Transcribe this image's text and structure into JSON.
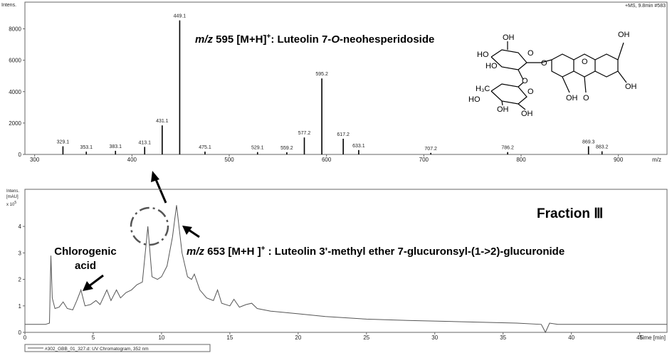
{
  "chart_data": [
    {
      "type": "stick",
      "ylabel": "Intens.",
      "info": "+MS, 9.8min #583",
      "xlabel": "m/z",
      "x": [
        329.1,
        353.1,
        383.1,
        413.1,
        431.1,
        449.1,
        475.1,
        529.1,
        559.2,
        577.2,
        595.2,
        617.2,
        633.1,
        707.2,
        786.2,
        869.3,
        883.2
      ],
      "values": [
        520,
        180,
        230,
        480,
        1850,
        8540,
        180,
        150,
        140,
        1080,
        4840,
        1000,
        280,
        100,
        150,
        520,
        200
      ],
      "color": "#000000",
      "xlim": [
        290,
        950
      ],
      "xticks": [
        300,
        400,
        500,
        600,
        700,
        800,
        900
      ],
      "ylim": [
        0,
        9700
      ],
      "yticks": [
        0,
        2000,
        4000,
        6000,
        8000
      ]
    },
    {
      "type": "line",
      "ylabel": [
        "Intens.",
        "[mAU]"
      ],
      "y_multiplier": "x 10",
      "y_multiplier_exp": "5",
      "xlabel": "Time [min]",
      "series": [
        {
          "name": "#302_GBB_01_327.d: UV Chromatogram, 352 nm",
          "color": "#555555",
          "x": [
            0,
            1.5,
            1.8,
            1.9,
            2.0,
            2.2,
            2.5,
            2.8,
            3.1,
            3.5,
            3.8,
            4.1,
            4.4,
            4.8,
            5.2,
            5.5,
            6.0,
            6.3,
            6.7,
            7.0,
            7.4,
            7.8,
            8.2,
            8.6,
            9.0,
            9.3,
            9.7,
            10.0,
            10.4,
            10.8,
            11.1,
            11.5,
            11.9,
            12.2,
            12.4,
            12.8,
            13.3,
            13.8,
            14.1,
            14.4,
            15.0,
            15.3,
            15.7,
            16.2,
            16.6,
            17.0,
            18.0,
            20,
            22,
            25,
            28,
            32,
            36,
            37.8,
            38.1,
            38.4,
            39,
            47
          ],
          "values": [
            0.3,
            0.3,
            0.35,
            2.9,
            1.3,
            0.9,
            0.95,
            1.15,
            0.9,
            0.85,
            1.2,
            1.6,
            1.0,
            1.05,
            1.2,
            1.05,
            1.6,
            1.2,
            1.6,
            1.3,
            1.5,
            1.6,
            1.8,
            1.9,
            4.0,
            2.1,
            2.0,
            2.1,
            2.5,
            3.6,
            4.8,
            3.0,
            2.1,
            2.0,
            2.2,
            1.6,
            1.3,
            1.2,
            1.6,
            1.1,
            1.0,
            1.25,
            0.95,
            1.05,
            1.1,
            0.9,
            0.8,
            0.7,
            0.6,
            0.5,
            0.45,
            0.4,
            0.35,
            0.3,
            0.0,
            0.35,
            0.3,
            0.3
          ]
        }
      ],
      "xlim": [
        0,
        47
      ],
      "xticks": [
        0,
        5,
        10,
        15,
        20,
        25,
        30,
        35,
        40,
        45
      ],
      "ylim": [
        0,
        5.4
      ],
      "yticks": [
        0,
        1,
        2,
        3,
        4
      ]
    }
  ],
  "annotations": {
    "top": [
      "m/z",
      " 595 [M+H]",
      "+",
      ":  Luteolin 7-",
      "O",
      "-neohesperidoside"
    ],
    "bottom": [
      "m/z",
      " 653 [M+H ]",
      "+",
      " : Luteolin 3'-methyl ether 7-glucuronsyl-(1->2)-glucuronide"
    ],
    "compound": [
      "Chlorogenic",
      "acid"
    ],
    "fraction": "Fraction  Ⅲ"
  },
  "structure": {
    "labels": [
      "OH",
      "HO",
      "HO",
      "O",
      "O",
      "O",
      "H₃C",
      "O",
      "HO",
      "OH",
      "OH",
      "O",
      "OH",
      "O",
      "OH",
      "OH"
    ]
  }
}
